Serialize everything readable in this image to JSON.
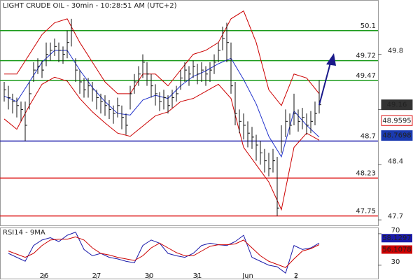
{
  "chart_data": [
    {
      "type": "ohlc",
      "title": "LIGHT CRUDE OIL - 30min - 10:28:51 AM (UTC+2)",
      "xlim": [
        -1,
        89
      ],
      "xticks": [
        {
          "value": 9.5,
          "label": "26"
        },
        {
          "value": 22,
          "label": "27"
        },
        {
          "value": 34.5,
          "label": "30"
        },
        {
          "value": 46,
          "label": "31"
        },
        {
          "value": 58,
          "label": "Jun"
        },
        {
          "value": 69.5,
          "label": "2"
        }
      ],
      "ylim": [
        47.63,
        50.48
      ],
      "yticks": [
        49.8,
        49.1,
        48.4,
        47.7
      ],
      "high": [
        49.45,
        49.4,
        49.3,
        49.25,
        49.2,
        49.2,
        49.45,
        49.7,
        49.75,
        49.72,
        49.95,
        49.95,
        50.0,
        49.95,
        49.9,
        50.1,
        50.25,
        49.75,
        49.6,
        49.5,
        49.5,
        49.45,
        49.35,
        49.3,
        49.28,
        49.22,
        49.15,
        49.25,
        49.15,
        49.05,
        49.4,
        49.55,
        49.65,
        49.8,
        49.7,
        49.55,
        49.42,
        49.32,
        49.35,
        49.28,
        49.35,
        49.4,
        49.6,
        49.7,
        49.65,
        49.72,
        49.68,
        49.7,
        49.65,
        49.7,
        49.8,
        49.95,
        50.15,
        50.2,
        49.95,
        49.45,
        49.1,
        49.05,
        48.95,
        48.88,
        48.78,
        48.7,
        48.6,
        48.55,
        48.6,
        48.5,
        48.9,
        49.1,
        49.05,
        49.3,
        49.1,
        49.12,
        49.05,
        49.08,
        49.2,
        49.47
      ],
      "low": [
        49.2,
        49.1,
        49.05,
        49.0,
        48.95,
        48.7,
        49.1,
        49.45,
        49.55,
        49.5,
        49.65,
        49.72,
        49.78,
        49.7,
        49.68,
        49.75,
        49.9,
        49.45,
        49.3,
        49.25,
        49.25,
        49.2,
        49.1,
        49.05,
        49.02,
        48.98,
        48.92,
        49.0,
        48.85,
        48.78,
        49.1,
        49.3,
        49.4,
        49.5,
        49.4,
        49.25,
        49.15,
        49.08,
        49.1,
        49.05,
        49.12,
        49.2,
        49.35,
        49.45,
        49.4,
        49.5,
        49.42,
        49.45,
        49.4,
        49.45,
        49.55,
        49.7,
        49.85,
        49.7,
        49.3,
        48.9,
        48.8,
        48.72,
        48.62,
        48.6,
        48.45,
        48.4,
        48.3,
        48.25,
        48.3,
        47.75,
        48.55,
        48.75,
        48.78,
        48.9,
        48.82,
        48.85,
        48.78,
        48.8,
        48.9,
        49.05
      ],
      "close": [
        49.35,
        49.25,
        49.2,
        49.15,
        49.1,
        48.9,
        49.3,
        49.6,
        49.65,
        49.6,
        49.8,
        49.85,
        49.9,
        49.85,
        49.8,
        49.95,
        50.1,
        49.6,
        49.45,
        49.35,
        49.4,
        49.35,
        49.25,
        49.2,
        49.15,
        49.1,
        49.05,
        49.15,
        49.0,
        48.9,
        49.3,
        49.45,
        49.55,
        49.7,
        49.55,
        49.4,
        49.3,
        49.2,
        49.25,
        49.15,
        49.25,
        49.3,
        49.5,
        49.6,
        49.55,
        49.65,
        49.55,
        49.6,
        49.55,
        49.6,
        49.7,
        49.85,
        50.0,
        49.95,
        49.4,
        49.05,
        48.95,
        48.9,
        48.8,
        48.75,
        48.65,
        48.55,
        48.45,
        48.35,
        48.45,
        47.85,
        48.7,
        48.95,
        48.9,
        49.05,
        48.95,
        49.0,
        48.9,
        48.95,
        49.05,
        49.16
      ],
      "bar_color": "#111111",
      "lines": [
        {
          "color": "#cc0000",
          "x": [
            0,
            3,
            6,
            9,
            12,
            15,
            18,
            21,
            24,
            27,
            30,
            33,
            36,
            39,
            42,
            45,
            48,
            51,
            54,
            57,
            60,
            63,
            66,
            69,
            72,
            75
          ],
          "values": [
            49.55,
            49.55,
            49.8,
            50.05,
            50.2,
            50.25,
            49.95,
            49.7,
            49.45,
            49.3,
            49.3,
            49.55,
            49.55,
            49.4,
            49.6,
            49.8,
            49.85,
            49.95,
            50.25,
            50.35,
            49.95,
            49.35,
            49.15,
            49.55,
            49.5,
            49.3
          ]
        },
        {
          "color": "#cc0000",
          "x": [
            0,
            3,
            6,
            9,
            12,
            15,
            18,
            21,
            24,
            27,
            30,
            33,
            36,
            39,
            42,
            45,
            48,
            51,
            54,
            57,
            60,
            63,
            66,
            69,
            72,
            75
          ],
          "values": [
            48.98,
            48.85,
            49.15,
            49.42,
            49.51,
            49.46,
            49.24,
            49.07,
            48.93,
            48.8,
            48.76,
            48.89,
            49.02,
            49.07,
            49.2,
            49.24,
            49.33,
            49.42,
            49.24,
            48.62,
            48.4,
            48.18,
            47.83,
            48.62,
            48.8,
            48.71
          ]
        },
        {
          "color": "#2233cc",
          "x": [
            0,
            3,
            6,
            9,
            12,
            15,
            18,
            21,
            24,
            27,
            30,
            33,
            36,
            39,
            42,
            45,
            48,
            51,
            54,
            57,
            60,
            63,
            66,
            69,
            72,
            75
          ],
          "values": [
            49.27,
            49.2,
            49.45,
            49.7,
            49.85,
            49.85,
            49.6,
            49.38,
            49.2,
            49.05,
            49.03,
            49.22,
            49.28,
            49.24,
            49.4,
            49.52,
            49.59,
            49.68,
            49.75,
            49.48,
            49.17,
            48.76,
            48.5,
            49.08,
            48.9,
            48.75
          ]
        }
      ],
      "levels": [
        {
          "value": 50.1,
          "color": "#1a9a1a"
        },
        {
          "value": 49.72,
          "color": "#1a9a1a"
        },
        {
          "value": 49.47,
          "color": "#1a9a1a"
        },
        {
          "value": 48.7,
          "color": "#1a1aaa"
        },
        {
          "value": 48.23,
          "color": "#dd1111"
        },
        {
          "value": 47.75,
          "color": "#dd1111"
        }
      ],
      "markers": [
        {
          "value": 49.16,
          "color": "#333333",
          "text_color": "#ffffff"
        },
        {
          "value": 48.9595,
          "color": "#ffffff",
          "text_color": "#dd1111"
        },
        {
          "value": 48.7698,
          "color": "#1a3ab0",
          "text_color": "#ffffff"
        }
      ]
    },
    {
      "type": "line",
      "title": "RSI14 - 9MA",
      "ylim": [
        13,
        77
      ],
      "yticks": [
        70,
        30
      ],
      "series": [
        {
          "color": "#1a1aaa",
          "x": [
            1,
            3,
            5,
            7,
            9,
            11,
            13,
            15,
            17,
            19,
            21,
            23,
            25,
            27,
            29,
            31,
            33,
            35,
            37,
            39,
            41,
            43,
            45,
            47,
            49,
            51,
            53,
            55,
            57,
            59,
            61,
            63,
            65,
            67,
            69,
            71,
            73,
            75
          ],
          "values": [
            45,
            40,
            35,
            55,
            62,
            65,
            60,
            68,
            72,
            50,
            42,
            45,
            40,
            38,
            35,
            33,
            55,
            62,
            58,
            45,
            42,
            40,
            45,
            55,
            58,
            56,
            55,
            60,
            68,
            40,
            35,
            30,
            28,
            20,
            55,
            50,
            52,
            58.1297
          ]
        },
        {
          "color": "#cc0000",
          "x": [
            1,
            3,
            5,
            7,
            9,
            11,
            13,
            15,
            17,
            19,
            21,
            23,
            25,
            27,
            29,
            31,
            33,
            35,
            37,
            39,
            41,
            43,
            45,
            47,
            49,
            51,
            53,
            55,
            57,
            59,
            61,
            63,
            65,
            67,
            69,
            71,
            73,
            75
          ],
          "values": [
            48,
            44,
            40,
            45,
            55,
            62,
            63,
            63,
            66,
            62,
            52,
            45,
            43,
            40,
            38,
            36,
            42,
            52,
            58,
            52,
            46,
            42,
            42,
            48,
            54,
            56,
            56,
            57,
            62,
            52,
            42,
            35,
            31,
            27,
            38,
            48,
            51,
            56.1078
          ]
        }
      ]
    }
  ]
}
